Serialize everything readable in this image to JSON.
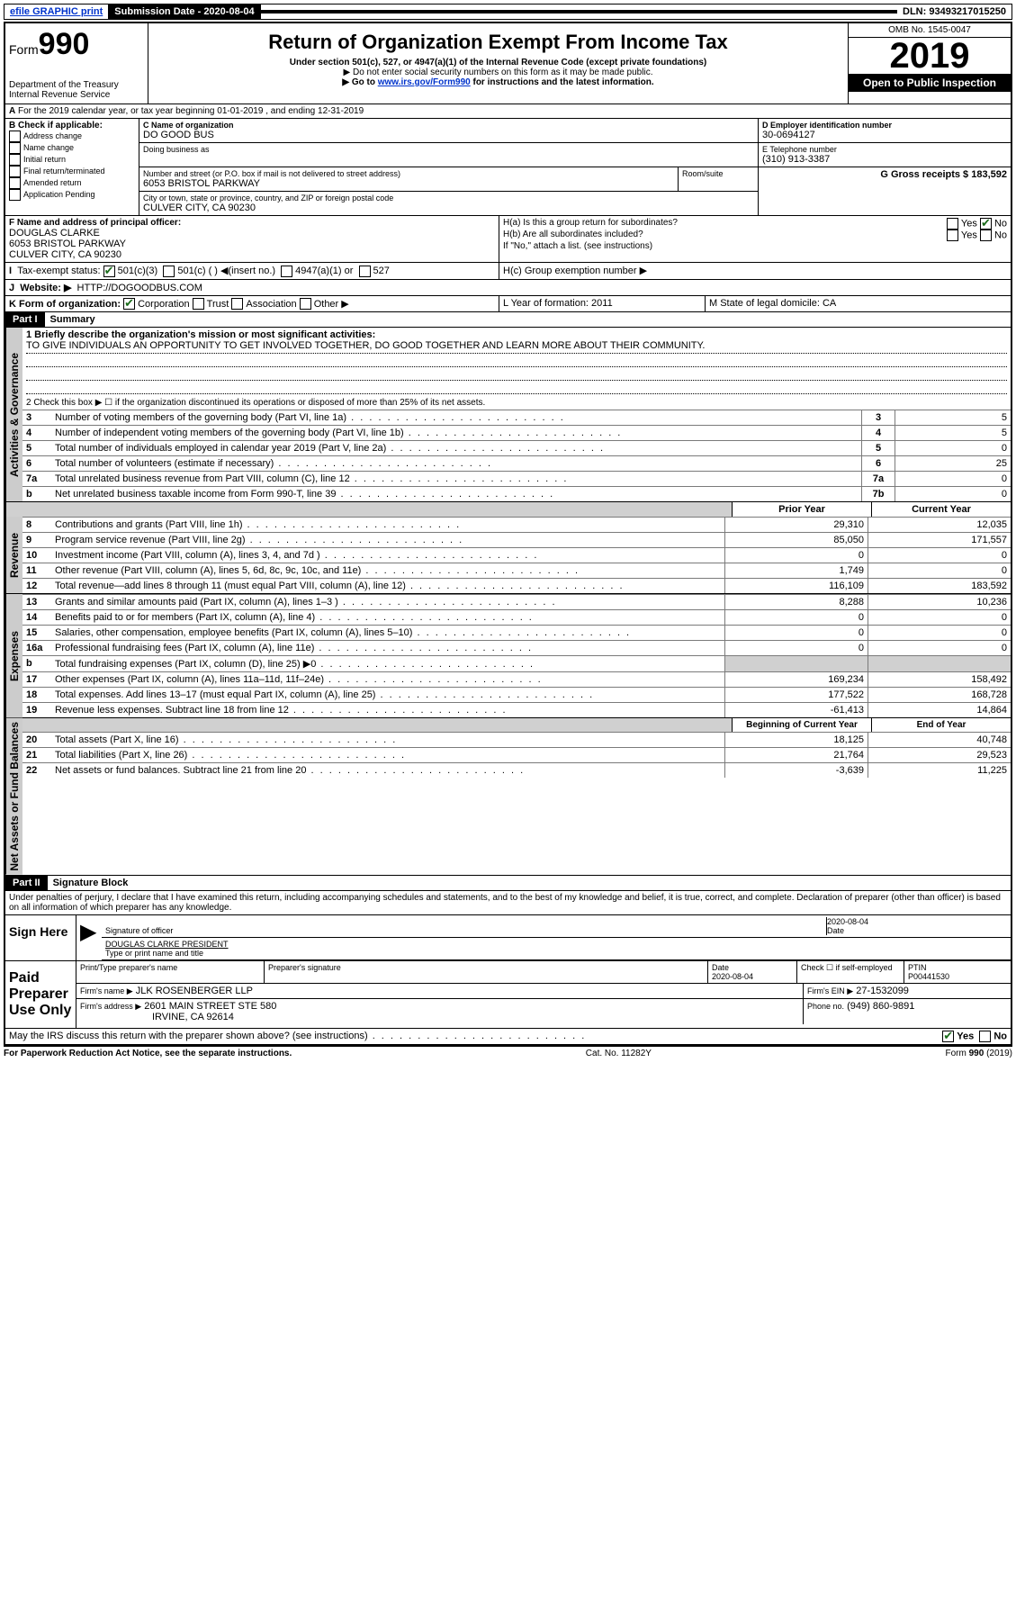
{
  "topbar": {
    "efile": "efile GRAPHIC print",
    "sub_label": "Submission Date - 2020-08-04",
    "dln": "DLN: 93493217015250"
  },
  "header": {
    "form_label": "Form",
    "form_number": "990",
    "title": "Return of Organization Exempt From Income Tax",
    "subtitle": "Under section 501(c), 527, or 4947(a)(1) of the Internal Revenue Code (except private foundations)",
    "note1": "▶ Do not enter social security numbers on this form as it may be made public.",
    "note2_pre": "▶ Go to ",
    "note2_link": "www.irs.gov/Form990",
    "note2_post": " for instructions and the latest information.",
    "dept": "Department of the Treasury\nInternal Revenue Service",
    "omb": "OMB No. 1545-0047",
    "year": "2019",
    "open": "Open to Public Inspection"
  },
  "sectionA": {
    "tax_year": "For the 2019 calendar year, or tax year beginning 01-01-2019    , and ending 12-31-2019",
    "check_label": "B Check if applicable:",
    "checks": [
      "Address change",
      "Name change",
      "Initial return",
      "Final return/terminated",
      "Amended return",
      "Application Pending"
    ],
    "c_label": "C Name of organization",
    "org_name": "DO GOOD BUS",
    "dba_label": "Doing business as",
    "addr_label": "Number and street (or P.O. box if mail is not delivered to street address)",
    "room_label": "Room/suite",
    "street": "6053 BRISTOL PARKWAY",
    "city_label": "City or town, state or province, country, and ZIP or foreign postal code",
    "city": "CULVER CITY, CA  90230",
    "d_label": "D Employer identification number",
    "ein": "30-0694127",
    "e_label": "E Telephone number",
    "phone": "(310) 913-3387",
    "g_label": "G Gross receipts $ 183,592",
    "f_label": "F  Name and address of principal officer:",
    "officer_name": "DOUGLAS CLARKE",
    "officer_addr1": "6053 BRISTOL PARKWAY",
    "officer_addr2": "CULVER CITY, CA  90230",
    "ha_label": "H(a)  Is this a group return for subordinates?",
    "hb_label": "H(b)  Are all subordinates included?",
    "hb_note": "If \"No,\" attach a list. (see instructions)",
    "hc_label": "H(c)  Group exemption number ▶",
    "yes": "Yes",
    "no": "No",
    "i_label": "Tax-exempt status:",
    "i_501c3": "501(c)(3)",
    "i_501c": "501(c) (   ) ◀(insert no.)",
    "i_4947": "4947(a)(1) or",
    "i_527": "527",
    "j_label": "Website: ▶",
    "website": "HTTP://DOGOODBUS.COM",
    "k_label": "K Form of organization:",
    "k_corp": "Corporation",
    "k_trust": "Trust",
    "k_assoc": "Association",
    "k_other": "Other ▶",
    "l_label": "L Year of formation: 2011",
    "m_label": "M State of legal domicile: CA"
  },
  "part1": {
    "hdr": "Part I",
    "title": "Summary",
    "q1_label": "1  Briefly describe the organization's mission or most significant activities:",
    "q1_text": "TO GIVE INDIVIDUALS AN OPPORTUNITY TO GET INVOLVED TOGETHER, DO GOOD TOGETHER AND LEARN MORE ABOUT THEIR COMMUNITY.",
    "q2": "2    Check this box ▶ ☐  if the organization discontinued its operations or disposed of more than 25% of its net assets.",
    "governance_side": "Activities & Governance",
    "revenue_side": "Revenue",
    "expenses_side": "Expenses",
    "netassets_side": "Net Assets or Fund Balances",
    "lines_gov": [
      {
        "n": "3",
        "t": "Number of voting members of the governing body (Part VI, line 1a)",
        "box": "3",
        "v": "5"
      },
      {
        "n": "4",
        "t": "Number of independent voting members of the governing body (Part VI, line 1b)",
        "box": "4",
        "v": "5"
      },
      {
        "n": "5",
        "t": "Total number of individuals employed in calendar year 2019 (Part V, line 2a)",
        "box": "5",
        "v": "0"
      },
      {
        "n": "6",
        "t": "Total number of volunteers (estimate if necessary)",
        "box": "6",
        "v": "25"
      },
      {
        "n": "7a",
        "t": "Total unrelated business revenue from Part VIII, column (C), line 12",
        "box": "7a",
        "v": "0"
      },
      {
        "n": "b",
        "t": "Net unrelated business taxable income from Form 990-T, line 39",
        "box": "7b",
        "v": "0"
      }
    ],
    "prior_year": "Prior Year",
    "current_year": "Current Year",
    "lines_rev": [
      {
        "n": "8",
        "t": "Contributions and grants (Part VIII, line 1h)",
        "p": "29,310",
        "c": "12,035"
      },
      {
        "n": "9",
        "t": "Program service revenue (Part VIII, line 2g)",
        "p": "85,050",
        "c": "171,557"
      },
      {
        "n": "10",
        "t": "Investment income (Part VIII, column (A), lines 3, 4, and 7d )",
        "p": "0",
        "c": "0"
      },
      {
        "n": "11",
        "t": "Other revenue (Part VIII, column (A), lines 5, 6d, 8c, 9c, 10c, and 11e)",
        "p": "1,749",
        "c": "0"
      },
      {
        "n": "12",
        "t": "Total revenue—add lines 8 through 11 (must equal Part VIII, column (A), line 12)",
        "p": "116,109",
        "c": "183,592"
      }
    ],
    "lines_exp": [
      {
        "n": "13",
        "t": "Grants and similar amounts paid (Part IX, column (A), lines 1–3 )",
        "p": "8,288",
        "c": "10,236"
      },
      {
        "n": "14",
        "t": "Benefits paid to or for members (Part IX, column (A), line 4)",
        "p": "0",
        "c": "0"
      },
      {
        "n": "15",
        "t": "Salaries, other compensation, employee benefits (Part IX, column (A), lines 5–10)",
        "p": "0",
        "c": "0"
      },
      {
        "n": "16a",
        "t": "Professional fundraising fees (Part IX, column (A), line 11e)",
        "p": "0",
        "c": "0"
      },
      {
        "n": "b",
        "t": "Total fundraising expenses (Part IX, column (D), line 25) ▶0",
        "p": "",
        "c": "",
        "shade": true
      },
      {
        "n": "17",
        "t": "Other expenses (Part IX, column (A), lines 11a–11d, 11f–24e)",
        "p": "169,234",
        "c": "158,492"
      },
      {
        "n": "18",
        "t": "Total expenses. Add lines 13–17 (must equal Part IX, column (A), line 25)",
        "p": "177,522",
        "c": "168,728"
      },
      {
        "n": "19",
        "t": "Revenue less expenses. Subtract line 18 from line 12",
        "p": "-61,413",
        "c": "14,864"
      }
    ],
    "beg_year": "Beginning of Current Year",
    "end_year": "End of Year",
    "lines_net": [
      {
        "n": "20",
        "t": "Total assets (Part X, line 16)",
        "p": "18,125",
        "c": "40,748"
      },
      {
        "n": "21",
        "t": "Total liabilities (Part X, line 26)",
        "p": "21,764",
        "c": "29,523"
      },
      {
        "n": "22",
        "t": "Net assets or fund balances. Subtract line 21 from line 20",
        "p": "-3,639",
        "c": "11,225"
      }
    ]
  },
  "part2": {
    "hdr": "Part II",
    "title": "Signature Block",
    "jurat": "Under penalties of perjury, I declare that I have examined this return, including accompanying schedules and statements, and to the best of my knowledge and belief, it is true, correct, and complete. Declaration of preparer (other than officer) is based on all information of which preparer has any knowledge.",
    "sign_here": "Sign Here",
    "sig_officer": "Signature of officer",
    "sig_date": "2020-08-04",
    "date_lbl": "Date",
    "officer_name": "DOUGLAS CLARKE  PRESIDENT",
    "type_name": "Type or print name and title",
    "paid": "Paid Preparer Use Only",
    "prep_name_lbl": "Print/Type preparer's name",
    "prep_sig_lbl": "Preparer's signature",
    "prep_date_lbl": "Date",
    "prep_date": "2020-08-04",
    "check_if": "Check ☐ if self-employed",
    "ptin_lbl": "PTIN",
    "ptin": "P00441530",
    "firm_name_lbl": "Firm's name    ▶",
    "firm_name": "JLK ROSENBERGER LLP",
    "firm_ein_lbl": "Firm's EIN ▶",
    "firm_ein": "27-1532099",
    "firm_addr_lbl": "Firm's address ▶",
    "firm_addr1": "2601 MAIN STREET STE 580",
    "firm_addr2": "IRVINE, CA  92614",
    "phone_lbl": "Phone no.",
    "phone": "(949) 860-9891",
    "discuss": "May the IRS discuss this return with the preparer shown above? (see instructions)",
    "paperwork": "For Paperwork Reduction Act Notice, see the separate instructions.",
    "cat": "Cat. No. 11282Y",
    "form_ver": "Form 990 (2019)"
  }
}
